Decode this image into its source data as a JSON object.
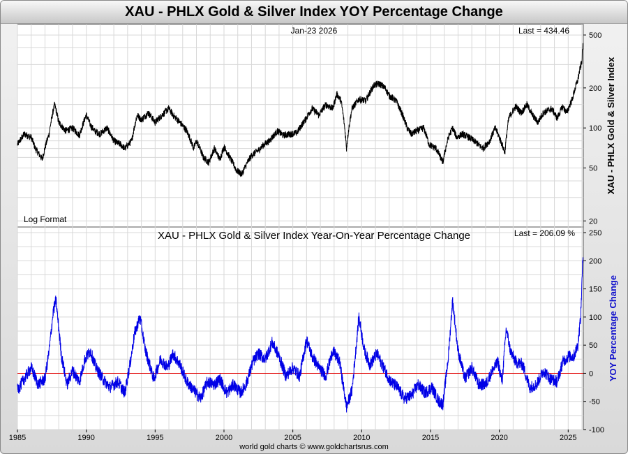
{
  "title": "XAU - PHLX Gold & Silver Index YOY Percentage Change",
  "footer": "world gold charts © www.goldchartsrus.com",
  "colors": {
    "price_line": "#000000",
    "yoy_line": "#0000e6",
    "zero_line": "#e00000",
    "grid": "#d8d8d8",
    "yoy_axis_label": "#1010cc"
  },
  "top_panel": {
    "date_label": "Jan-23  2026",
    "last_label": "Last = 434.46",
    "scale_note": "Log Format",
    "right_axis_label": "XAU - PHLX Gold & Silver Index",
    "yticks": [
      20,
      50,
      100,
      200,
      500
    ]
  },
  "bottom_panel": {
    "subtitle": "XAU - PHLX Gold & Silver Index Year-On-Year Percentage Change",
    "last_label": "Last = 206.09 %",
    "right_axis_label": "YOY Percentage Change",
    "yticks": [
      -100,
      -50,
      0,
      50,
      100,
      150,
      200,
      250
    ]
  },
  "x_axis": {
    "ticks": [
      1985,
      1990,
      1995,
      2000,
      2005,
      2010,
      2015,
      2020,
      2025
    ]
  },
  "chart_data": [
    {
      "type": "line",
      "title": "XAU - PHLX Gold & Silver Index",
      "ylabel": "XAU - PHLX Gold & Silver Index",
      "yscale": "log",
      "xlim": [
        1985.0,
        2026.1
      ],
      "ylim": [
        18,
        600
      ],
      "series": [
        {
          "name": "XAU - PHLX Gold & Silver Index",
          "x": [
            1985.0,
            1985.5,
            1986.0,
            1986.3,
            1986.8,
            1987.3,
            1987.7,
            1988.0,
            1988.5,
            1989.0,
            1989.5,
            1990.0,
            1990.3,
            1990.6,
            1991.0,
            1991.5,
            1992.0,
            1992.5,
            1992.8,
            1993.3,
            1993.7,
            1994.0,
            1994.5,
            1995.0,
            1995.5,
            1996.0,
            1996.3,
            1996.8,
            1997.3,
            1997.8,
            1998.0,
            1998.5,
            1998.9,
            1999.3,
            1999.7,
            2000.0,
            2000.5,
            2000.9,
            2001.3,
            2001.7,
            2002.0,
            2002.5,
            2002.9,
            2003.3,
            2003.9,
            2004.3,
            2004.8,
            2005.3,
            2005.9,
            2006.4,
            2006.9,
            2007.4,
            2007.9,
            2008.2,
            2008.5,
            2008.9,
            2009.3,
            2009.8,
            2010.3,
            2010.9,
            2011.3,
            2011.7,
            2012.0,
            2012.5,
            2012.9,
            2013.3,
            2013.6,
            2014.0,
            2014.5,
            2014.9,
            2015.4,
            2015.9,
            2016.3,
            2016.6,
            2016.9,
            2017.3,
            2017.8,
            2018.3,
            2018.8,
            2019.3,
            2019.7,
            2020.2,
            2020.4,
            2020.7,
            2021.2,
            2021.6,
            2022.0,
            2022.4,
            2022.8,
            2023.2,
            2023.8,
            2024.2,
            2024.6,
            2024.9,
            2025.3,
            2025.7,
            2026.0,
            2026.07
          ],
          "values": [
            75,
            90,
            85,
            70,
            58,
            90,
            150,
            110,
            95,
            100,
            88,
            125,
            105,
            95,
            90,
            100,
            80,
            75,
            70,
            80,
            125,
            115,
            130,
            110,
            125,
            140,
            125,
            110,
            95,
            70,
            80,
            60,
            55,
            70,
            58,
            72,
            58,
            48,
            45,
            55,
            62,
            68,
            75,
            80,
            95,
            88,
            90,
            92,
            115,
            140,
            125,
            150,
            140,
            180,
            160,
            70,
            140,
            165,
            160,
            210,
            215,
            200,
            175,
            160,
            130,
            100,
            90,
            95,
            100,
            75,
            70,
            55,
            85,
            100,
            85,
            90,
            85,
            78,
            70,
            80,
            100,
            75,
            65,
            120,
            145,
            130,
            150,
            125,
            110,
            130,
            140,
            118,
            145,
            130,
            165,
            230,
            320,
            434.46
          ]
        }
      ]
    },
    {
      "type": "line",
      "title": "XAU - PHLX Gold & Silver Index Year-On-Year Percentage Change",
      "ylabel": "YOY Percentage Change",
      "xlim": [
        1985.0,
        2026.1
      ],
      "ylim": [
        -100,
        260
      ],
      "series": [
        {
          "name": "YOY Percentage Change",
          "x": [
            1985.0,
            1985.5,
            1986.0,
            1986.5,
            1987.0,
            1987.3,
            1987.6,
            1987.8,
            1988.2,
            1988.6,
            1989.0,
            1989.5,
            1989.9,
            1990.3,
            1990.7,
            1991.2,
            1991.7,
            1992.3,
            1992.8,
            1993.2,
            1993.5,
            1993.9,
            1994.3,
            1994.9,
            1995.4,
            1995.9,
            1996.3,
            1996.8,
            1997.3,
            1997.8,
            1998.3,
            1998.8,
            1999.3,
            1999.7,
            2000.2,
            2000.7,
            2001.2,
            2001.6,
            2002.1,
            2002.5,
            2003.0,
            2003.5,
            2004.0,
            2004.5,
            2005.0,
            2005.5,
            2006.0,
            2006.4,
            2006.9,
            2007.4,
            2007.9,
            2008.4,
            2008.9,
            2009.3,
            2009.8,
            2010.2,
            2010.6,
            2011.1,
            2011.6,
            2012.1,
            2012.6,
            2013.1,
            2013.6,
            2014.1,
            2014.6,
            2015.1,
            2015.6,
            2015.9,
            2016.3,
            2016.6,
            2017.0,
            2017.5,
            2018.0,
            2018.5,
            2019.0,
            2019.5,
            2019.9,
            2020.2,
            2020.5,
            2020.8,
            2021.2,
            2021.7,
            2022.2,
            2022.7,
            2023.2,
            2023.7,
            2024.2,
            2024.6,
            2025.0,
            2025.4,
            2025.7,
            2025.9,
            2026.07
          ],
          "values": [
            -30,
            -10,
            10,
            -20,
            -10,
            40,
            110,
            130,
            30,
            -20,
            5,
            -15,
            25,
            40,
            10,
            -10,
            -25,
            -15,
            -35,
            20,
            70,
            100,
            40,
            -10,
            25,
            10,
            35,
            15,
            -15,
            -30,
            -45,
            -15,
            -20,
            -10,
            -35,
            -20,
            -35,
            -20,
            20,
            35,
            25,
            55,
            30,
            -5,
            10,
            -5,
            60,
            30,
            10,
            -5,
            40,
            20,
            -60,
            -30,
            100,
            40,
            15,
            35,
            10,
            -15,
            -25,
            -45,
            -40,
            -20,
            -35,
            -25,
            -50,
            -55,
            30,
            130,
            40,
            -10,
            10,
            -20,
            -20,
            5,
            20,
            -15,
            80,
            40,
            20,
            15,
            -25,
            -20,
            5,
            -10,
            -15,
            20,
            30,
            30,
            50,
            100,
            206.09
          ]
        }
      ]
    }
  ]
}
